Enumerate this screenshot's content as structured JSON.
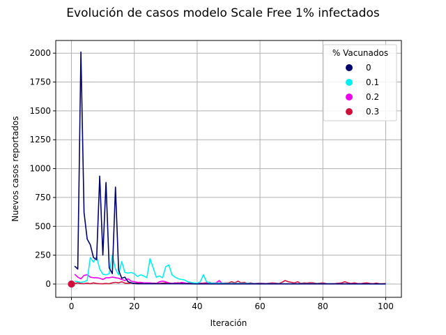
{
  "chart_data": {
    "type": "line",
    "title": "Evolución de casos modelo Scale Free 1% infectados",
    "xlabel": "Iteración",
    "ylabel": "Nuevos casos reportados",
    "xlim": [
      -5,
      105
    ],
    "ylim": [
      -115,
      2110
    ],
    "xticks": [
      0,
      20,
      40,
      60,
      80,
      100
    ],
    "yticks": [
      0,
      250,
      500,
      750,
      1000,
      1250,
      1500,
      1750,
      2000
    ],
    "grid": true,
    "legend": {
      "title": "% Vacunados",
      "placement": "top-right"
    },
    "series": [
      {
        "name": "0",
        "color": "#00006e",
        "marker": {
          "x": 0,
          "y": 0
        },
        "points": [
          [
            1,
            155
          ],
          [
            2,
            130
          ],
          [
            3,
            2010
          ],
          [
            4,
            620
          ],
          [
            5,
            390
          ],
          [
            6,
            340
          ],
          [
            7,
            230
          ],
          [
            8,
            210
          ],
          [
            9,
            935
          ],
          [
            10,
            250
          ],
          [
            11,
            880
          ],
          [
            12,
            140
          ],
          [
            13,
            90
          ],
          [
            14,
            840
          ],
          [
            15,
            120
          ],
          [
            16,
            50
          ],
          [
            17,
            60
          ],
          [
            18,
            20
          ],
          [
            19,
            10
          ],
          [
            20,
            5
          ],
          [
            21,
            2
          ],
          [
            25,
            2
          ],
          [
            30,
            2
          ],
          [
            35,
            2
          ],
          [
            40,
            1
          ],
          [
            50,
            1
          ],
          [
            60,
            1
          ],
          [
            70,
            1
          ],
          [
            80,
            1
          ],
          [
            90,
            1
          ],
          [
            100,
            1
          ]
        ]
      },
      {
        "name": "0.1",
        "color": "#00f0f0",
        "marker": {
          "x": 0,
          "y": 0
        },
        "points": [
          [
            1,
            25
          ],
          [
            2,
            20
          ],
          [
            3,
            15
          ],
          [
            4,
            20
          ],
          [
            5,
            30
          ],
          [
            6,
            230
          ],
          [
            7,
            190
          ],
          [
            8,
            240
          ],
          [
            9,
            130
          ],
          [
            10,
            85
          ],
          [
            11,
            80
          ],
          [
            12,
            90
          ],
          [
            13,
            250
          ],
          [
            14,
            130
          ],
          [
            15,
            80
          ],
          [
            16,
            195
          ],
          [
            17,
            100
          ],
          [
            18,
            95
          ],
          [
            19,
            100
          ],
          [
            20,
            90
          ],
          [
            21,
            65
          ],
          [
            22,
            80
          ],
          [
            23,
            70
          ],
          [
            24,
            55
          ],
          [
            25,
            220
          ],
          [
            26,
            140
          ],
          [
            27,
            60
          ],
          [
            28,
            70
          ],
          [
            29,
            55
          ],
          [
            30,
            150
          ],
          [
            31,
            165
          ],
          [
            32,
            80
          ],
          [
            33,
            60
          ],
          [
            34,
            45
          ],
          [
            35,
            40
          ],
          [
            36,
            35
          ],
          [
            37,
            20
          ],
          [
            38,
            15
          ],
          [
            39,
            10
          ],
          [
            40,
            8
          ],
          [
            41,
            20
          ],
          [
            42,
            80
          ],
          [
            43,
            20
          ],
          [
            44,
            10
          ],
          [
            45,
            8
          ],
          [
            50,
            5
          ],
          [
            55,
            5
          ],
          [
            60,
            3
          ],
          [
            70,
            2
          ],
          [
            80,
            2
          ],
          [
            90,
            1
          ],
          [
            100,
            1
          ]
        ]
      },
      {
        "name": "0.2",
        "color": "#ee00ee",
        "marker": {
          "x": 0,
          "y": 0
        },
        "points": [
          [
            1,
            85
          ],
          [
            2,
            60
          ],
          [
            3,
            45
          ],
          [
            4,
            75
          ],
          [
            5,
            80
          ],
          [
            6,
            60
          ],
          [
            7,
            55
          ],
          [
            8,
            55
          ],
          [
            9,
            50
          ],
          [
            10,
            40
          ],
          [
            11,
            55
          ],
          [
            12,
            55
          ],
          [
            13,
            60
          ],
          [
            14,
            55
          ],
          [
            15,
            50
          ],
          [
            16,
            40
          ],
          [
            17,
            30
          ],
          [
            18,
            45
          ],
          [
            19,
            25
          ],
          [
            20,
            20
          ],
          [
            21,
            15
          ],
          [
            22,
            15
          ],
          [
            23,
            10
          ],
          [
            24,
            10
          ],
          [
            25,
            10
          ],
          [
            26,
            5
          ],
          [
            27,
            5
          ],
          [
            28,
            20
          ],
          [
            29,
            25
          ],
          [
            30,
            20
          ],
          [
            31,
            10
          ],
          [
            32,
            5
          ],
          [
            33,
            10
          ],
          [
            34,
            5
          ],
          [
            35,
            15
          ],
          [
            36,
            10
          ],
          [
            37,
            5
          ],
          [
            38,
            3
          ],
          [
            40,
            5
          ],
          [
            42,
            3
          ],
          [
            44,
            8
          ],
          [
            46,
            10
          ],
          [
            47,
            30
          ],
          [
            48,
            5
          ],
          [
            50,
            5
          ],
          [
            55,
            5
          ],
          [
            60,
            5
          ],
          [
            65,
            3
          ],
          [
            70,
            3
          ],
          [
            80,
            2
          ],
          [
            90,
            2
          ],
          [
            100,
            1
          ]
        ]
      },
      {
        "name": "0.3",
        "color": "#d0103a",
        "marker": {
          "x": 0,
          "y": 0
        },
        "points": [
          [
            1,
            5
          ],
          [
            2,
            10
          ],
          [
            3,
            5
          ],
          [
            4,
            3
          ],
          [
            5,
            8
          ],
          [
            6,
            3
          ],
          [
            7,
            10
          ],
          [
            8,
            5
          ],
          [
            9,
            3
          ],
          [
            10,
            2
          ],
          [
            11,
            5
          ],
          [
            12,
            3
          ],
          [
            13,
            10
          ],
          [
            14,
            15
          ],
          [
            15,
            10
          ],
          [
            16,
            20
          ],
          [
            17,
            8
          ],
          [
            18,
            5
          ],
          [
            19,
            10
          ],
          [
            20,
            5
          ],
          [
            22,
            10
          ],
          [
            24,
            5
          ],
          [
            26,
            8
          ],
          [
            28,
            5
          ],
          [
            30,
            10
          ],
          [
            32,
            5
          ],
          [
            34,
            10
          ],
          [
            36,
            5
          ],
          [
            38,
            10
          ],
          [
            40,
            5
          ],
          [
            42,
            8
          ],
          [
            44,
            15
          ],
          [
            45,
            5
          ],
          [
            46,
            10
          ],
          [
            48,
            8
          ],
          [
            50,
            10
          ],
          [
            51,
            20
          ],
          [
            52,
            10
          ],
          [
            53,
            25
          ],
          [
            54,
            10
          ],
          [
            55,
            15
          ],
          [
            56,
            5
          ],
          [
            57,
            10
          ],
          [
            58,
            5
          ],
          [
            60,
            8
          ],
          [
            62,
            5
          ],
          [
            64,
            10
          ],
          [
            66,
            5
          ],
          [
            67,
            15
          ],
          [
            68,
            30
          ],
          [
            69,
            20
          ],
          [
            70,
            15
          ],
          [
            71,
            10
          ],
          [
            72,
            20
          ],
          [
            73,
            5
          ],
          [
            74,
            10
          ],
          [
            75,
            8
          ],
          [
            76,
            12
          ],
          [
            77,
            10
          ],
          [
            78,
            5
          ],
          [
            80,
            10
          ],
          [
            81,
            5
          ],
          [
            82,
            3
          ],
          [
            84,
            5
          ],
          [
            86,
            10
          ],
          [
            87,
            20
          ],
          [
            88,
            10
          ],
          [
            89,
            5
          ],
          [
            90,
            10
          ],
          [
            91,
            5
          ],
          [
            92,
            3
          ],
          [
            93,
            8
          ],
          [
            94,
            10
          ],
          [
            95,
            5
          ],
          [
            96,
            3
          ],
          [
            97,
            8
          ],
          [
            98,
            3
          ],
          [
            99,
            2
          ],
          [
            100,
            5
          ]
        ]
      }
    ]
  }
}
